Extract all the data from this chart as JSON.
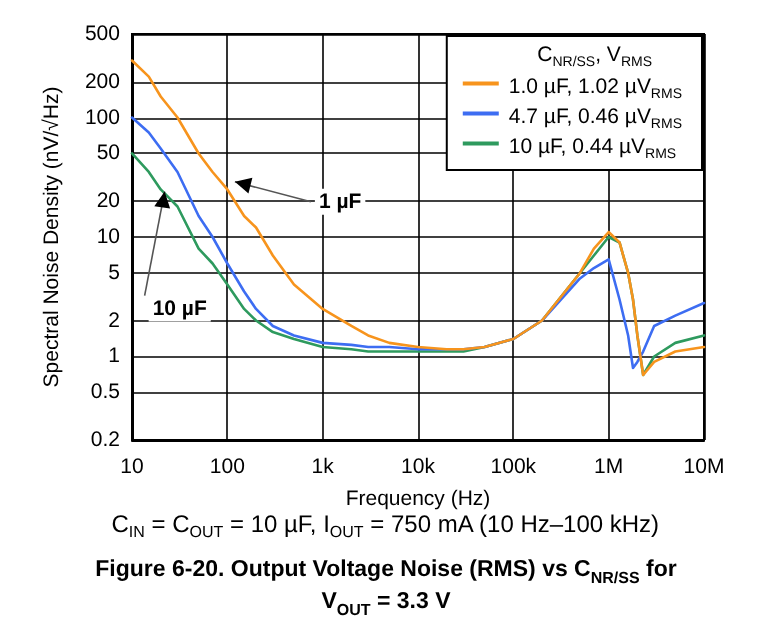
{
  "chart_data": {
    "type": "line",
    "title": "Figure 6-20. Output Voltage Noise (RMS) vs C$_{NR/SS}$ for V$_{OUT}$ = 3.3 V",
    "subtitle": "C$_{IN}$ = C$_{OUT}$ = 10 µF, I$_{OUT}$ = 750 mA (10 Hz–100 kHz)",
    "xlabel": "Frequency (Hz)",
    "ylabel": "Spectral Noise Density (nV/√Hz)",
    "legend_title": "C$_{NR/SS}$, V$_{RMS}$",
    "x": [
      10,
      15,
      20,
      30,
      50,
      70,
      100,
      150,
      200,
      300,
      500,
      1000,
      2000,
      3000,
      5000,
      10000,
      20000,
      30000,
      50000,
      100000,
      200000,
      500000,
      700000,
      1000000,
      1300000,
      1600000,
      1800000,
      2000000,
      2300000,
      3000000,
      5000000,
      10000000
    ],
    "series": [
      {
        "name": "1.0 µF, 1.02 µV$_{RMS}$",
        "color": "#f7941d",
        "values": [
          300,
          220,
          150,
          100,
          50,
          35,
          25,
          15,
          12,
          7,
          4,
          2.5,
          1.8,
          1.5,
          1.3,
          1.2,
          1.15,
          1.15,
          1.2,
          1.4,
          2,
          5,
          8,
          11,
          9,
          5,
          3,
          1.5,
          0.7,
          0.9,
          1.1,
          1.2
        ]
      },
      {
        "name": "4.7 µF, 0.46 µV$_{RMS}$",
        "color": "#3d6df2",
        "values": [
          100,
          75,
          55,
          35,
          15,
          10,
          6,
          3.5,
          2.5,
          1.8,
          1.5,
          1.3,
          1.25,
          1.2,
          1.2,
          1.15,
          1.15,
          1.15,
          1.2,
          1.4,
          2,
          4.5,
          5.5,
          6.5,
          3,
          1.5,
          0.8,
          0.9,
          1.1,
          1.8,
          2.2,
          2.8
        ]
      },
      {
        "name": "10 µF, 0.44 µV$_{RMS}$",
        "color": "#2e9a5e",
        "values": [
          50,
          35,
          25,
          18,
          8,
          6,
          4,
          2.5,
          2,
          1.6,
          1.4,
          1.2,
          1.15,
          1.1,
          1.1,
          1.1,
          1.1,
          1.1,
          1.2,
          1.4,
          2,
          5,
          7,
          10,
          9,
          5,
          3,
          1.5,
          0.7,
          1,
          1.3,
          1.5
        ]
      }
    ],
    "xlim": [
      10,
      10000000
    ],
    "xticks": [
      10,
      100,
      {
        "value": 1000,
        "label": "1k"
      },
      {
        "value": 10000,
        "label": "10k"
      },
      {
        "value": 100000,
        "label": "100k"
      },
      {
        "value": 1000000,
        "label": "1M"
      },
      {
        "value": 10000000,
        "label": "10M"
      }
    ],
    "ylim": [
      0.2,
      500
    ],
    "yticks": [
      0.2,
      0.5,
      1,
      2,
      5,
      10,
      20,
      50,
      100,
      200,
      500
    ],
    "log": "xy",
    "grid": true,
    "legend": "top right",
    "marker": "none",
    "line_style": "solid",
    "annotations": [
      {
        "text": "1 µF",
        "x": 120,
        "y": 29
      },
      {
        "text": "10 µF",
        "x": 22,
        "y": 24
      }
    ]
  }
}
